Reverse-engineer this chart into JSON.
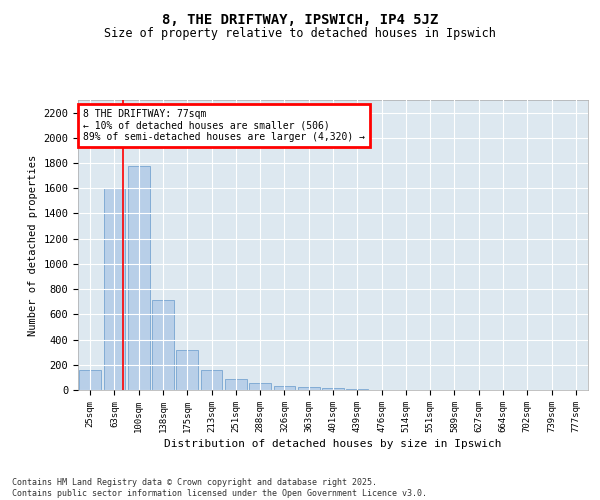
{
  "title": "8, THE DRIFTWAY, IPSWICH, IP4 5JZ",
  "subtitle": "Size of property relative to detached houses in Ipswich",
  "xlabel": "Distribution of detached houses by size in Ipswich",
  "ylabel": "Number of detached properties",
  "categories": [
    "25sqm",
    "63sqm",
    "100sqm",
    "138sqm",
    "175sqm",
    "213sqm",
    "251sqm",
    "288sqm",
    "326sqm",
    "363sqm",
    "401sqm",
    "439sqm",
    "476sqm",
    "514sqm",
    "551sqm",
    "589sqm",
    "627sqm",
    "664sqm",
    "702sqm",
    "739sqm",
    "777sqm"
  ],
  "values": [
    160,
    1600,
    1780,
    710,
    315,
    160,
    85,
    52,
    30,
    20,
    15,
    5,
    3,
    2,
    1,
    1,
    1,
    0,
    0,
    0,
    0
  ],
  "bar_color": "#b8cfe8",
  "bar_edge_color": "#6699cc",
  "figure_bg": "#ffffff",
  "axes_bg": "#dde8f0",
  "grid_color": "#ffffff",
  "red_line_x": 1.35,
  "annotation_text": "8 THE DRIFTWAY: 77sqm\n← 10% of detached houses are smaller (506)\n89% of semi-detached houses are larger (4,320) →",
  "ylim": [
    0,
    2300
  ],
  "yticks": [
    0,
    200,
    400,
    600,
    800,
    1000,
    1200,
    1400,
    1600,
    1800,
    2000,
    2200
  ],
  "footer_line1": "Contains HM Land Registry data © Crown copyright and database right 2025.",
  "footer_line2": "Contains public sector information licensed under the Open Government Licence v3.0."
}
